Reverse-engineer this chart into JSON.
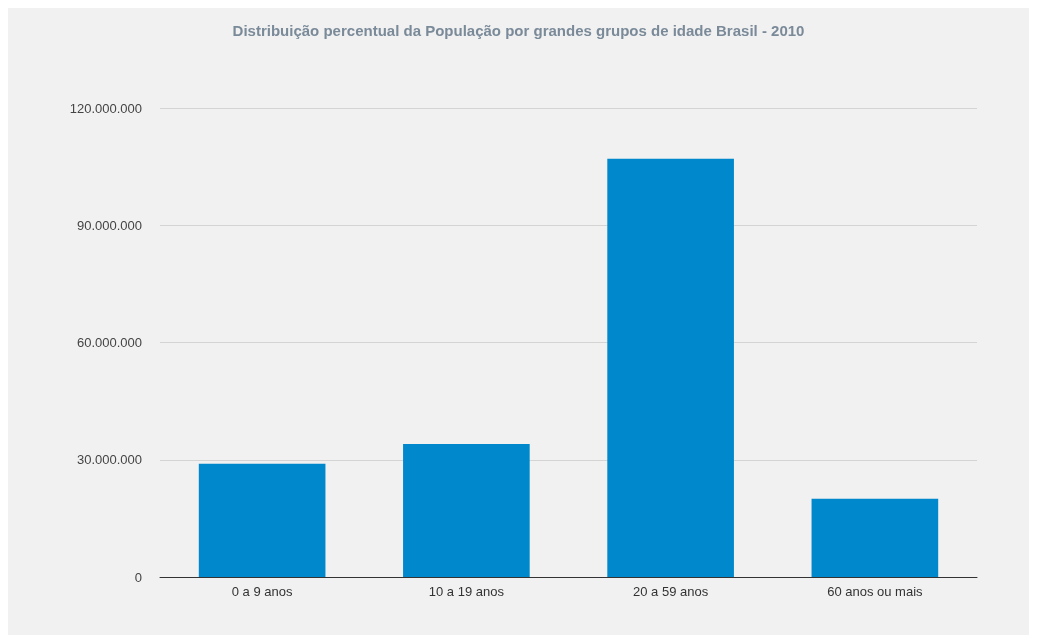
{
  "chart_data": {
    "type": "bar",
    "title": "Distribuição percentual da População por grandes grupos de idade Brasil - 2010",
    "categories": [
      "0 a 9 anos",
      "10 a 19 anos",
      "20 a 59 anos",
      "60 anos ou mais"
    ],
    "values": [
      29000000,
      34000000,
      107000000,
      20000000
    ],
    "color": "#0088cc",
    "ylim": [
      0,
      120000000
    ],
    "yticks": [
      {
        "value": 0,
        "label": "0"
      },
      {
        "value": 30000000,
        "label": "30.000.000"
      },
      {
        "value": 60000000,
        "label": "60.000.000"
      },
      {
        "value": 90000000,
        "label": "90.000.000"
      },
      {
        "value": 120000000,
        "label": "120.000.000"
      }
    ],
    "grid": "y"
  }
}
